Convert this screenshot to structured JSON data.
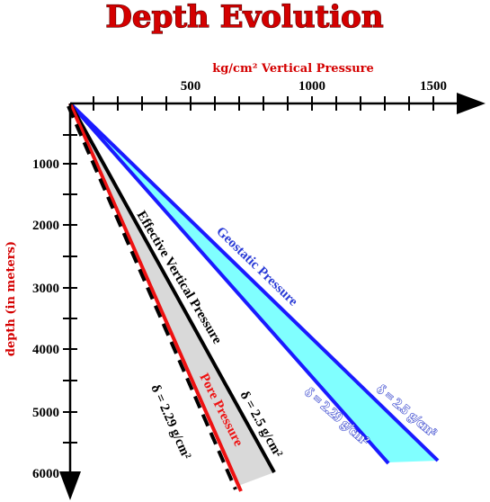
{
  "title": "Depth Evolution",
  "x_axis": {
    "title": "kg/cm² Vertical Pressure",
    "tick_labels": [
      "500",
      "1000",
      "1500"
    ]
  },
  "y_axis": {
    "title": "depth (in meters)",
    "tick_labels": [
      "1000",
      "2000",
      "3000",
      "4000",
      "5000",
      "6000"
    ]
  },
  "labels": {
    "geostatic": "Geostatic Pressure",
    "effective": "Effective Vertical Pressure",
    "pore": "Pore Pressure",
    "delta_25_geo": "δ = 2.5 g/cm²",
    "delta_229_geo": "δ = 2.29 g/cm²",
    "delta_25_eff": "δ = 2.5 g/cm²",
    "delta_229_pore": "δ = 2.29 g/cm²"
  },
  "colors": {
    "title": "#d40000",
    "geostatic": "#1a1aff",
    "geostatic_fill": "#80ffff",
    "effective": "#000000",
    "effective_fill": "#d9d9d9",
    "pore": "#ee1111"
  }
}
